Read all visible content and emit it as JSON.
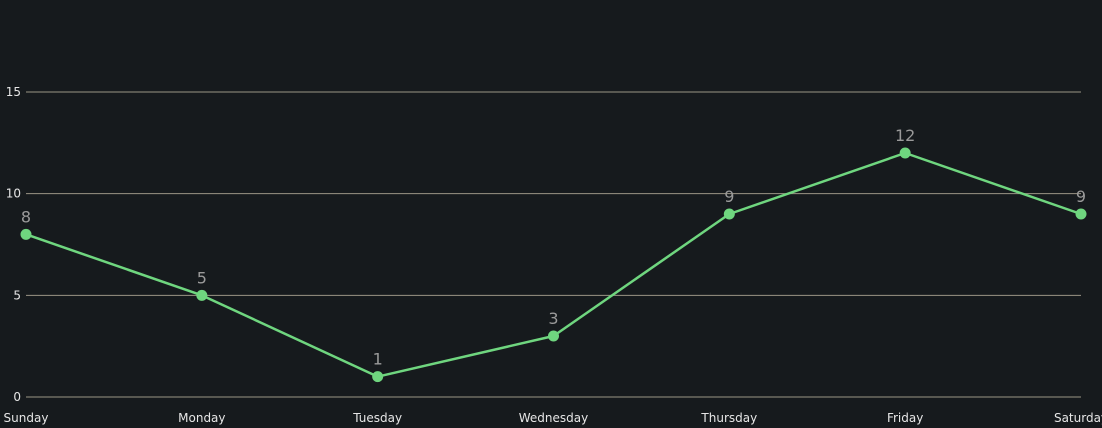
{
  "chart_data": {
    "type": "line",
    "categories": [
      "Sunday",
      "Monday",
      "Tuesday",
      "Wednesday",
      "Thursday",
      "Friday",
      "Saturday"
    ],
    "series": [
      {
        "values": [
          8,
          5,
          1,
          3,
          9,
          12,
          9
        ],
        "color": "#6fd67f"
      }
    ],
    "ylim": [
      0,
      15
    ],
    "yticks": [
      0,
      5,
      10,
      15
    ],
    "grid": true,
    "data_labels": true,
    "colors": {
      "background": "#161a1d",
      "grid": "#9b9585",
      "tick_text": "#e6e6e6",
      "data_label_text": "#9a9a9a"
    }
  }
}
